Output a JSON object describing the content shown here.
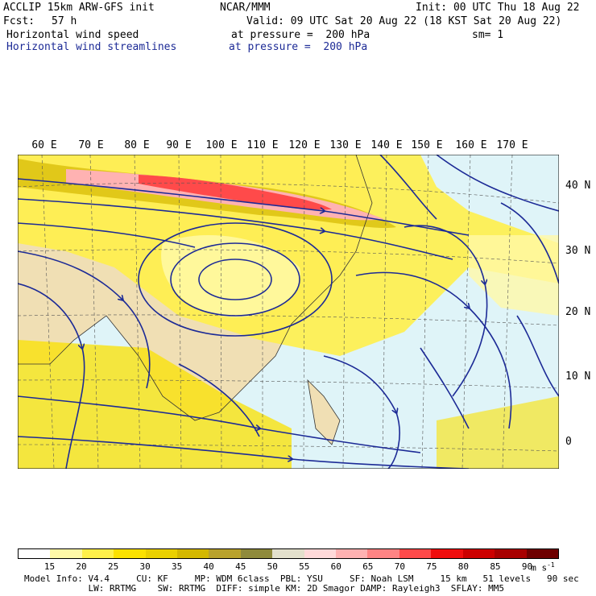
{
  "header": {
    "model": "ACCLIP 15km ARW-GFS init",
    "center": "NCAR/MMM",
    "init": "Init: 00 UTC Thu 18 Aug 22",
    "fcst_label": "Fcst:",
    "fcst_value": "57 h",
    "valid": "Valid: 09 UTC Sat 20 Aug 22 (18 KST Sat 20 Aug 22)",
    "field1": "Horizontal wind speed",
    "field1_level": "at pressure =  200 hPa",
    "smooth": "sm= 1",
    "field2": "Horizontal wind streamlines",
    "field2_level": "at pressure =  200 hPa"
  },
  "map": {
    "lon_labels": [
      "60 E",
      "70 E",
      "80 E",
      "90 E",
      "100 E",
      "110 E",
      "120 E",
      "130 E",
      "140 E",
      "150 E",
      "160 E",
      "170 E"
    ],
    "lat_labels": [
      "40 N",
      "30 N",
      "20 N",
      "10 N",
      "0"
    ],
    "colors": {
      "ocean": "#dff4f8",
      "land": "#f0dfb4",
      "streamline": "#1c2a96"
    }
  },
  "colorbar": {
    "ticks": [
      "15",
      "20",
      "25",
      "30",
      "35",
      "40",
      "45",
      "50",
      "55",
      "60",
      "65",
      "70",
      "75",
      "80",
      "85",
      "90"
    ],
    "unit": "m s",
    "unit_exp": "-1",
    "colors": [
      "#ffffff",
      "#fff9a8",
      "#fff04a",
      "#fbe100",
      "#ead000",
      "#d4b800",
      "#b9a22c",
      "#8f8a3c",
      "#e3e0cc",
      "#ffd9d9",
      "#ffb2b2",
      "#ff8484",
      "#ff4a4a",
      "#f00e0e",
      "#cc0000",
      "#a80000",
      "#6e0000"
    ]
  },
  "footer": {
    "line1": "Model Info: V4.4     CU: KF     MP: WDM 6class  PBL: YSU     SF: Noah LSM     15 km   51 levels   90 sec",
    "line2": "            LW: RRTMG    SW: RRTMG  DIFF: simple KM: 2D Smagor DAMP: Rayleigh3  SFLAY: MM5"
  }
}
